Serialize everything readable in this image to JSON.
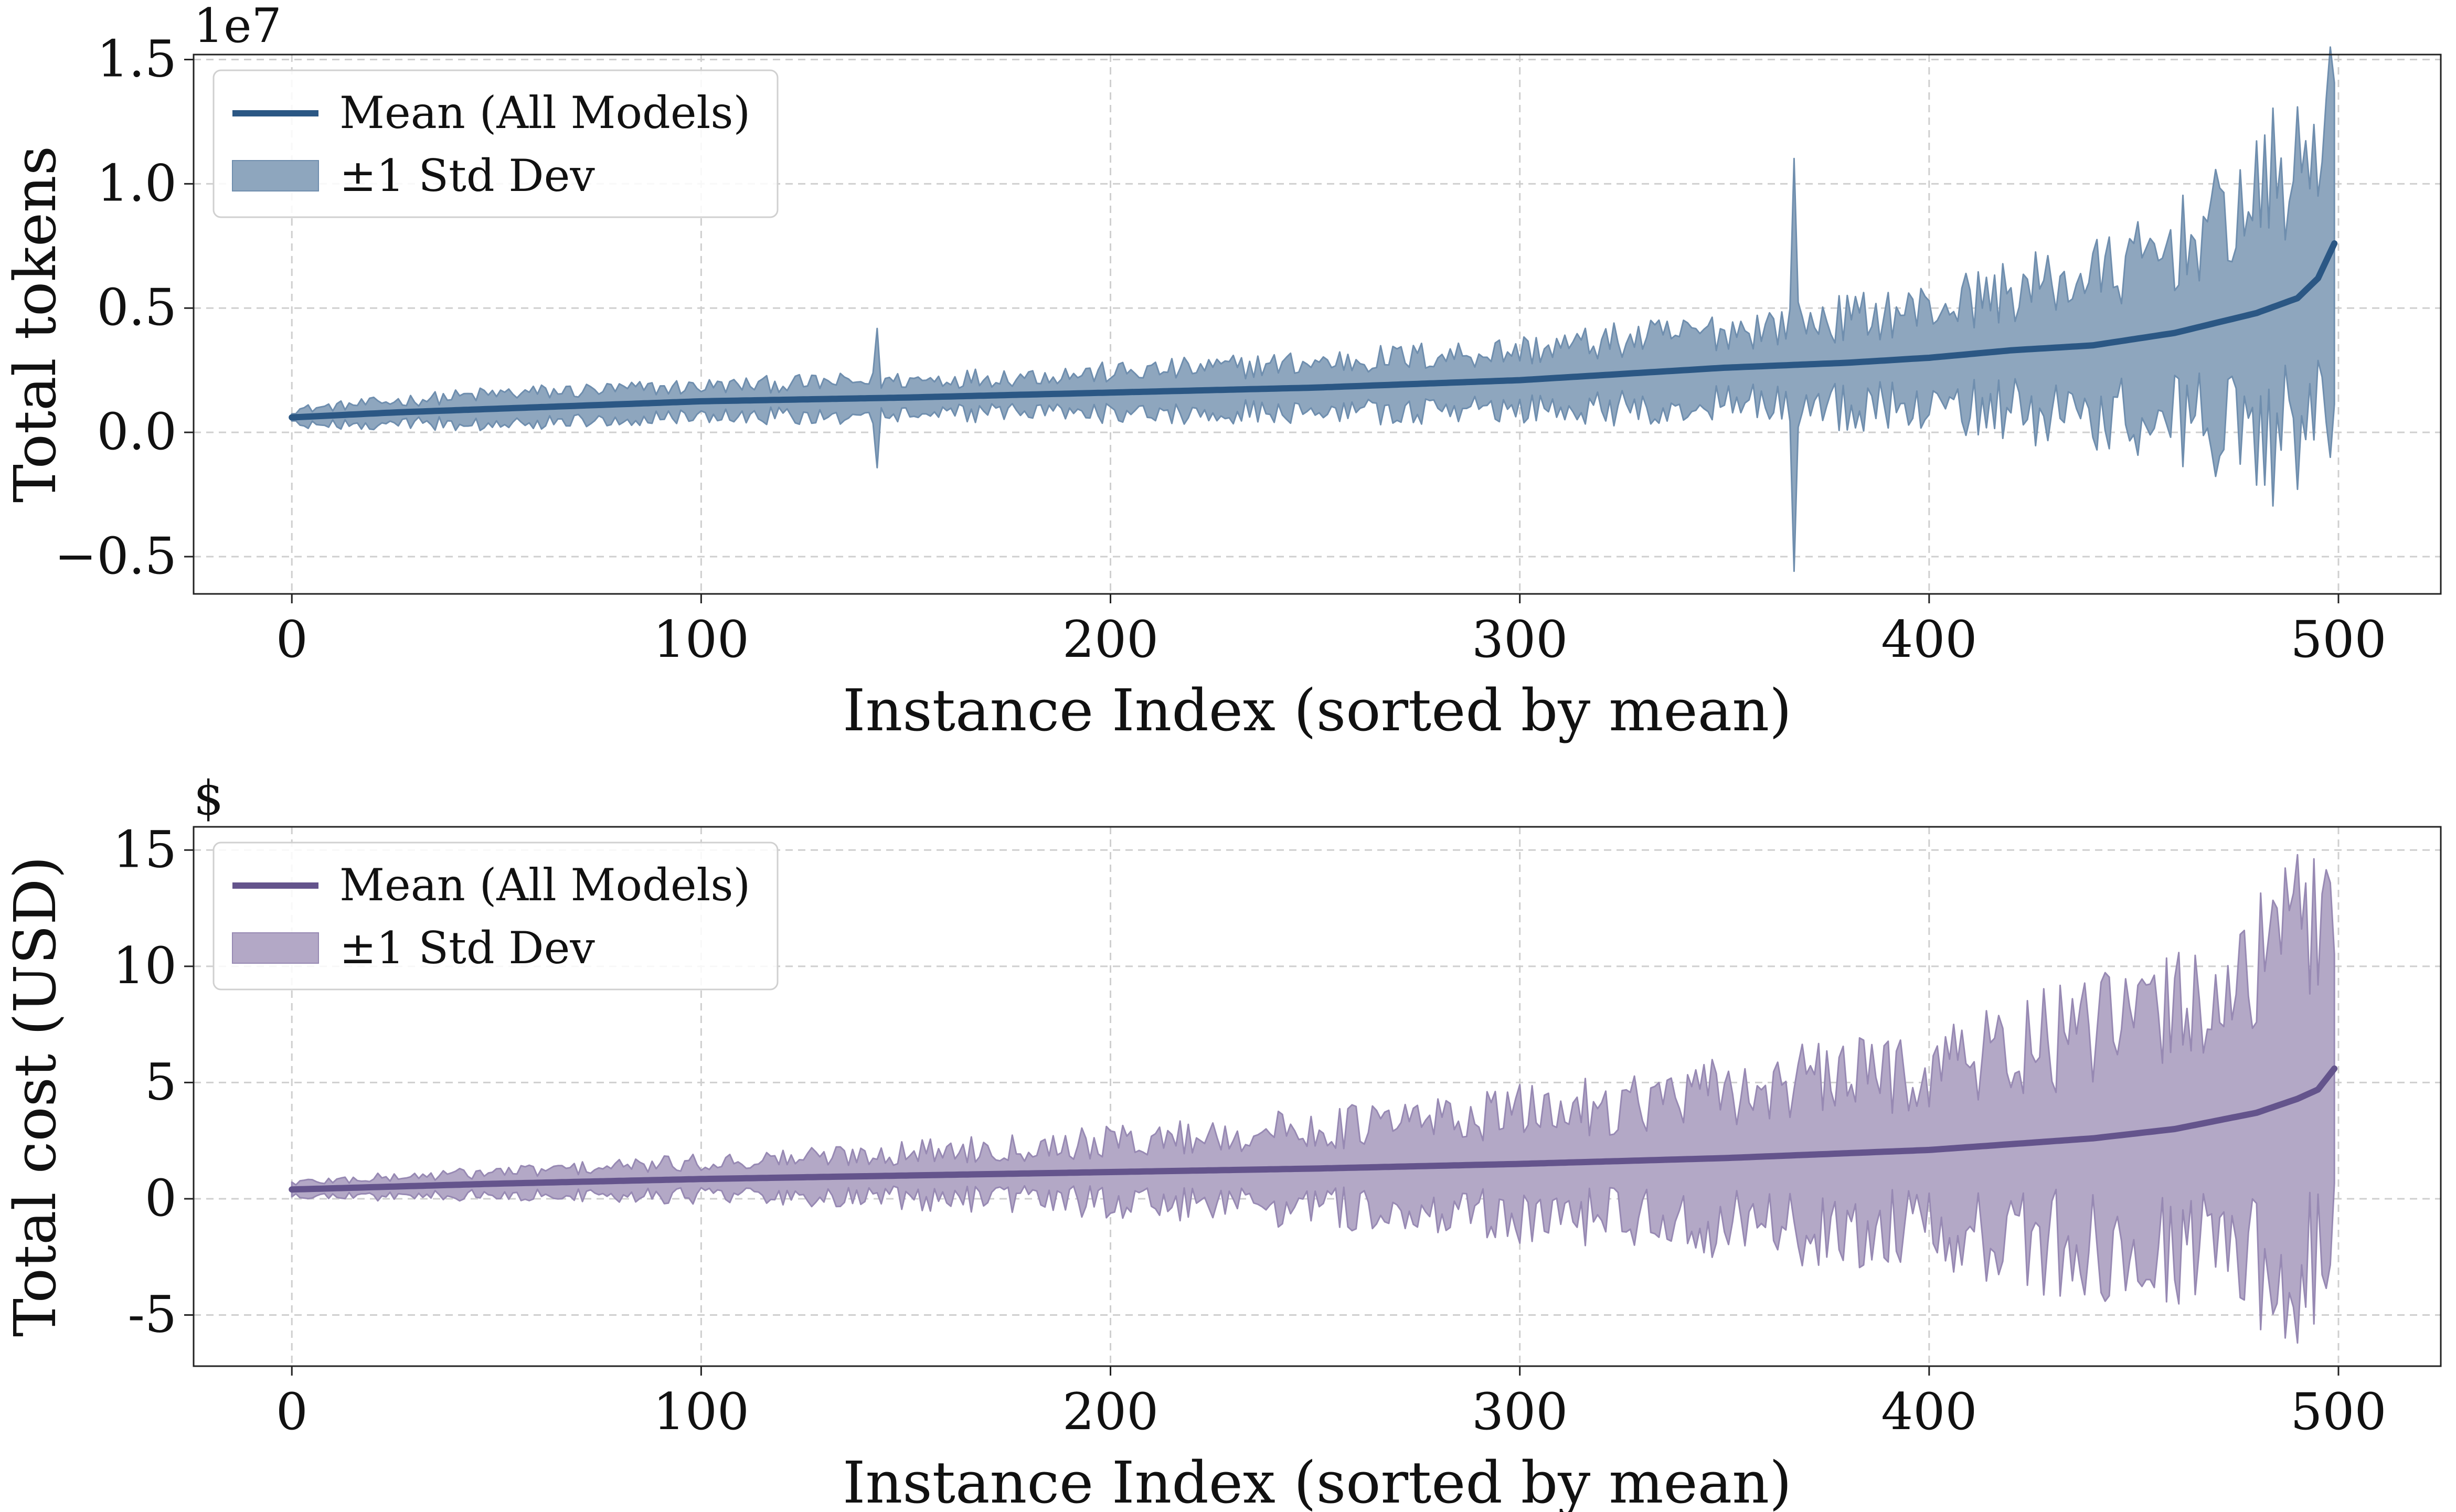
{
  "figure": {
    "panels": [
      {
        "xlabel": "Instance Index (sorted by mean)",
        "ylabel": "Total tokens",
        "offset_text": "1e7",
        "x_ticks": [
          "0",
          "100",
          "200",
          "300",
          "400",
          "500"
        ],
        "y_ticks": [
          "−0.5",
          "0.0",
          "0.5",
          "1.0",
          "1.5"
        ],
        "legend": {
          "mean": "Mean (All Models)",
          "std": "±1 Std Dev"
        },
        "line_color": "#2b5784",
        "fill_color": "#8ea6be",
        "fill_edge_color": "#6f8eae"
      },
      {
        "xlabel": "Instance Index (sorted by mean)",
        "ylabel": "Total cost (USD)",
        "offset_text": "$",
        "x_ticks": [
          "0",
          "100",
          "200",
          "300",
          "400",
          "500"
        ],
        "y_ticks": [
          "-5",
          "0",
          "5",
          "10",
          "15"
        ],
        "legend": {
          "mean": "Mean (All Models)",
          "std": "±1 Std Dev"
        },
        "line_color": "#64548c",
        "fill_color": "#b3a8c6",
        "fill_edge_color": "#9789b3"
      }
    ]
  },
  "chart_data": [
    {
      "type": "area",
      "xlabel": "Instance Index (sorted by mean)",
      "ylabel": "Total tokens",
      "y_scale_offset": "1e7",
      "xlim": [
        -24,
        525
      ],
      "ylim": [
        -0.65,
        1.52
      ],
      "x_ticks": [
        0,
        100,
        200,
        300,
        400,
        500
      ],
      "y_ticks": [
        -0.5,
        0.0,
        0.5,
        1.0,
        1.5
      ],
      "grid": true,
      "legend_position": "top-left",
      "n_instances": 500,
      "x_start": 0,
      "series": [
        {
          "name": "Mean (All Models)",
          "kind": "line",
          "keypoints": [
            [
              0,
              0.06
            ],
            [
              25,
              0.08
            ],
            [
              50,
              0.095
            ],
            [
              100,
              0.125
            ],
            [
              150,
              0.14
            ],
            [
              200,
              0.16
            ],
            [
              250,
              0.18
            ],
            [
              300,
              0.21
            ],
            [
              350,
              0.26
            ],
            [
              380,
              0.28
            ],
            [
              400,
              0.3
            ],
            [
              420,
              0.33
            ],
            [
              440,
              0.35
            ],
            [
              460,
              0.4
            ],
            [
              470,
              0.44
            ],
            [
              480,
              0.48
            ],
            [
              490,
              0.54
            ],
            [
              495,
              0.62
            ],
            [
              499,
              0.76
            ]
          ],
          "values": [
            0.06,
            0.08,
            0.095,
            0.125,
            0.14,
            0.16,
            0.18,
            0.21,
            0.26,
            0.28,
            0.3,
            0.33,
            0.35,
            0.4,
            0.44,
            0.48,
            0.54,
            0.62,
            0.76
          ]
        },
        {
          "name": "±1 Std Dev",
          "kind": "band",
          "half_width_keypoints": [
            [
              0,
              0.03
            ],
            [
              50,
              0.06
            ],
            [
              100,
              0.06
            ],
            [
              200,
              0.08
            ],
            [
              300,
              0.12
            ],
            [
              350,
              0.15
            ],
            [
              400,
              0.2
            ],
            [
              450,
              0.3
            ],
            [
              470,
              0.4
            ],
            [
              490,
              0.5
            ],
            [
              499,
              0.6
            ]
          ],
          "spikes": [
            [
              143,
              0.28
            ],
            [
              367,
              0.83
            ],
            [
              484,
              0.8
            ],
            [
              497,
              0.65
            ]
          ],
          "values": [
            0.03,
            0.06,
            0.06,
            0.08,
            0.12,
            0.15,
            0.2,
            0.3,
            0.4,
            0.5,
            0.6
          ]
        }
      ]
    },
    {
      "type": "area",
      "xlabel": "Instance Index (sorted by mean)",
      "ylabel": "Total cost (USD)",
      "y_unit_label": "$",
      "xlim": [
        -24,
        525
      ],
      "ylim": [
        -7.2,
        16
      ],
      "x_ticks": [
        0,
        100,
        200,
        300,
        400,
        500
      ],
      "y_ticks": [
        -5,
        0,
        5,
        10,
        15
      ],
      "grid": true,
      "legend_position": "top-left",
      "n_instances": 500,
      "x_start": 0,
      "series": [
        {
          "name": "Mean (All Models)",
          "kind": "line",
          "keypoints": [
            [
              0,
              0.4
            ],
            [
              50,
              0.65
            ],
            [
              100,
              0.85
            ],
            [
              150,
              1.0
            ],
            [
              200,
              1.15
            ],
            [
              250,
              1.3
            ],
            [
              300,
              1.5
            ],
            [
              350,
              1.75
            ],
            [
              400,
              2.1
            ],
            [
              420,
              2.35
            ],
            [
              440,
              2.6
            ],
            [
              460,
              3.0
            ],
            [
              480,
              3.7
            ],
            [
              490,
              4.3
            ],
            [
              495,
              4.7
            ],
            [
              499,
              5.6
            ]
          ],
          "values": [
            0.4,
            0.65,
            0.85,
            1.0,
            1.15,
            1.3,
            1.5,
            1.75,
            2.1,
            2.35,
            2.6,
            3.0,
            3.7,
            4.3,
            4.7,
            5.6
          ]
        },
        {
          "name": "±1 Std Dev",
          "kind": "band",
          "half_width_keypoints": [
            [
              0,
              0.3
            ],
            [
              50,
              0.5
            ],
            [
              100,
              0.7
            ],
            [
              150,
              1.0
            ],
            [
              200,
              1.3
            ],
            [
              250,
              1.7
            ],
            [
              300,
              2.2
            ],
            [
              350,
              2.8
            ],
            [
              400,
              3.6
            ],
            [
              450,
              4.8
            ],
            [
              480,
              6.0
            ],
            [
              499,
              8.0
            ]
          ],
          "spikes": [
            [
              490,
              10.5
            ],
            [
              494,
              10.0
            ],
            [
              497,
              9.0
            ]
          ],
          "values": [
            0.3,
            0.5,
            0.7,
            1.0,
            1.3,
            1.7,
            2.2,
            2.8,
            3.6,
            4.8,
            6.0,
            8.0
          ]
        }
      ]
    }
  ]
}
